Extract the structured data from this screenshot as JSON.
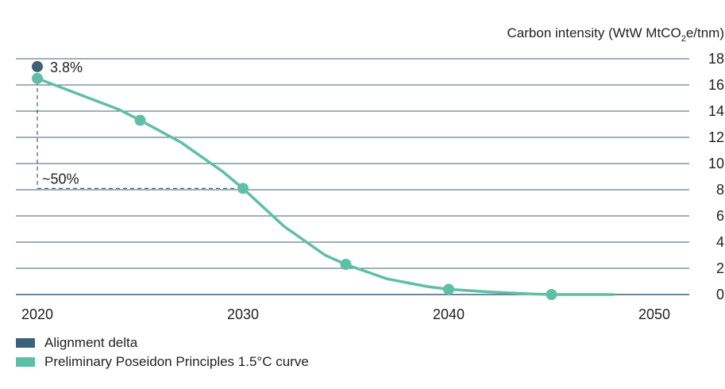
{
  "chart_data": {
    "type": "line",
    "ylabel": "Carbon intensity (WtW MtCO",
    "ylabel_sub": "2",
    "ylabel_end": "e/tnm)",
    "xlim": [
      2020,
      2050
    ],
    "ylim": [
      0,
      18
    ],
    "x_ticks": [
      "2020",
      "2030",
      "2040",
      "2050"
    ],
    "x_tick_values": [
      2020,
      2030,
      2040,
      2050
    ],
    "y_ticks": [
      "0",
      "2",
      "4",
      "6",
      "8",
      "10",
      "12",
      "14",
      "16",
      "18"
    ],
    "y_tick_values": [
      0,
      2,
      4,
      6,
      8,
      10,
      12,
      14,
      16,
      18
    ],
    "grid": true,
    "y_axis_position": "right",
    "legend_position": "bottom-left",
    "series": [
      {
        "name": "Preliminary Poseidon Principles 1.5°C curve",
        "color": "#5fbfa6",
        "x": [
          2020,
          2022,
          2024,
          2025,
          2027,
          2029,
          2030,
          2032,
          2034,
          2035,
          2037,
          2039,
          2040,
          2042,
          2044,
          2045,
          2047,
          2048
        ],
        "y": [
          16.5,
          15.3,
          14.1,
          13.3,
          11.6,
          9.4,
          8.1,
          5.2,
          3.0,
          2.3,
          1.2,
          0.6,
          0.4,
          0.2,
          0.05,
          0.0,
          0.0,
          0.0
        ],
        "markers": [
          [
            2020,
            16.5
          ],
          [
            2025,
            13.3
          ],
          [
            2030,
            8.1
          ],
          [
            2035,
            2.3
          ],
          [
            2040,
            0.4
          ],
          [
            2045,
            0.0
          ]
        ]
      },
      {
        "name": "Alignment delta",
        "color": "#3d6178",
        "markers": [
          [
            2020,
            17.4
          ]
        ]
      }
    ],
    "annotations": [
      {
        "text": "3.8%",
        "x": 2020,
        "y": 17.4
      },
      {
        "text": "~50%",
        "x": 2020,
        "y": 8.1
      }
    ]
  },
  "legend": {
    "items": [
      {
        "label": "Alignment delta",
        "color": "#3d6178"
      },
      {
        "label": "Preliminary Poseidon Principles 1.5°C curve",
        "color": "#5fbfa6"
      }
    ]
  }
}
